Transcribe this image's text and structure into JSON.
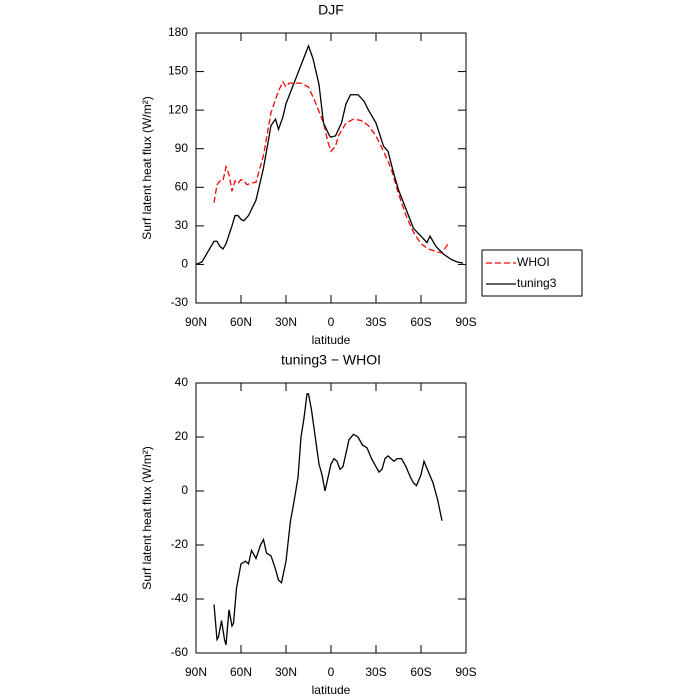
{
  "chart_data": [
    {
      "type": "line",
      "title": "DJF",
      "xlabel": "latitude",
      "ylabel": "Surf latent heat flux (W/m²)",
      "xlim": [
        90,
        -90
      ],
      "xticks": [
        {
          "value": 90,
          "label": "90N"
        },
        {
          "value": 60,
          "label": "60N"
        },
        {
          "value": 30,
          "label": "30N"
        },
        0,
        {
          "value": -30,
          "label": "30S"
        },
        {
          "value": -60,
          "label": "60S"
        },
        {
          "value": -90,
          "label": "90S"
        }
      ],
      "ylim": [
        -30,
        180
      ],
      "yticks": [
        -30,
        0,
        30,
        60,
        90,
        120,
        150,
        180
      ],
      "legend": "right",
      "series": [
        {
          "name": "WHOI",
          "color": "#ff0000",
          "dash": true,
          "x": [
            78,
            76,
            74,
            72,
            70,
            68,
            66,
            64,
            62,
            60,
            58,
            56,
            54,
            50,
            45,
            40,
            35,
            32,
            30,
            28,
            25,
            20,
            15,
            10,
            5,
            2,
            0,
            -3,
            -5,
            -10,
            -15,
            -20,
            -25,
            -30,
            -35,
            -40,
            -45,
            -50,
            -55,
            -60,
            -65,
            -70,
            -74,
            -78
          ],
          "values": [
            48,
            62,
            65,
            65,
            76,
            70,
            57,
            65,
            63,
            66,
            65,
            62,
            63,
            64,
            85,
            118,
            135,
            142,
            138,
            141,
            141,
            141,
            138,
            125,
            110,
            95,
            88,
            92,
            100,
            110,
            113,
            112,
            108,
            100,
            88,
            75,
            55,
            38,
            25,
            16,
            12,
            10,
            9,
            16
          ]
        },
        {
          "name": "tuning3",
          "color": "#000000",
          "dash": false,
          "x": [
            90,
            86,
            84,
            82,
            78,
            76,
            74,
            72,
            70,
            66,
            64,
            62,
            60,
            58,
            55,
            50,
            45,
            40,
            37,
            35,
            32,
            30,
            25,
            20,
            15,
            12,
            8,
            5,
            3,
            1,
            0,
            -3,
            -7,
            -10,
            -13,
            -18,
            -22,
            -25,
            -30,
            -35,
            -38,
            -42,
            -45,
            -50,
            -55,
            -60,
            -64,
            -66,
            -70,
            -75,
            -80,
            -84,
            -88
          ],
          "values": [
            0,
            2,
            6,
            10,
            18,
            18,
            14,
            12,
            16,
            30,
            38,
            38,
            35,
            34,
            38,
            50,
            75,
            108,
            113,
            105,
            115,
            125,
            140,
            155,
            170,
            160,
            140,
            110,
            105,
            100,
            99,
            100,
            110,
            125,
            132,
            132,
            127,
            120,
            110,
            92,
            88,
            70,
            58,
            43,
            28,
            22,
            17,
            22,
            14,
            8,
            4,
            2,
            1
          ]
        }
      ]
    },
    {
      "type": "line",
      "title": "tuning3 − WHOI",
      "xlabel": "latitude",
      "ylabel": "Surf latent heat flux (W/m²)",
      "xlim": [
        90,
        -90
      ],
      "xticks": [
        {
          "value": 90,
          "label": "90N"
        },
        {
          "value": 60,
          "label": "60N"
        },
        {
          "value": 30,
          "label": "30N"
        },
        0,
        {
          "value": -30,
          "label": "30S"
        },
        {
          "value": -60,
          "label": "60S"
        },
        {
          "value": -90,
          "label": "90S"
        }
      ],
      "ylim": [
        -60,
        40
      ],
      "yticks": [
        -60,
        -40,
        -20,
        0,
        20,
        40
      ],
      "series": [
        {
          "color": "#000000",
          "dash": false,
          "x": [
            78,
            76,
            75,
            73,
            71,
            70,
            68,
            66,
            65,
            63,
            60,
            57,
            55,
            53,
            50,
            47,
            45,
            43,
            40,
            37,
            35,
            33,
            30,
            27,
            25,
            22,
            20,
            18,
            16,
            15,
            13,
            11,
            8,
            6,
            4,
            2,
            0,
            -2,
            -4,
            -6,
            -8,
            -10,
            -12,
            -15,
            -18,
            -21,
            -24,
            -27,
            -30,
            -32,
            -34,
            -36,
            -38,
            -40,
            -42,
            -44,
            -47,
            -50,
            -53,
            -55,
            -57,
            -60,
            -62,
            -65,
            -68,
            -71,
            -74
          ],
          "values": [
            -42,
            -55,
            -54,
            -48,
            -55,
            -57,
            -44,
            -50,
            -49,
            -36,
            -27,
            -26,
            -27,
            -22,
            -25,
            -20,
            -18,
            -23,
            -24,
            -29,
            -33,
            -34,
            -26,
            -11,
            -5,
            5,
            20,
            27,
            36,
            36,
            30,
            22,
            10,
            6,
            0,
            5,
            10,
            12,
            11,
            8,
            9,
            14,
            19,
            21,
            20,
            17,
            16,
            12,
            9,
            7,
            8,
            12,
            13,
            12,
            11,
            12,
            12,
            9,
            5,
            3,
            2,
            6,
            11,
            7,
            3,
            -3,
            -11
          ]
        }
      ]
    }
  ]
}
